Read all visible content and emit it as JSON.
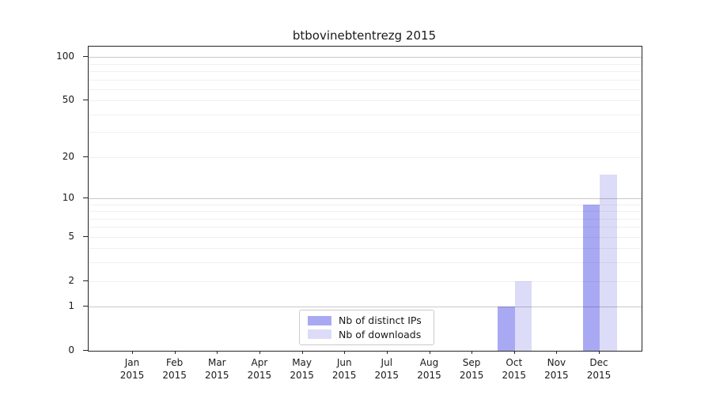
{
  "chart_data": {
    "type": "bar",
    "title": "btbovinebtentrezg 2015",
    "categories": [
      {
        "m": "Jan",
        "y": "2015"
      },
      {
        "m": "Feb",
        "y": "2015"
      },
      {
        "m": "Mar",
        "y": "2015"
      },
      {
        "m": "Apr",
        "y": "2015"
      },
      {
        "m": "May",
        "y": "2015"
      },
      {
        "m": "Jun",
        "y": "2015"
      },
      {
        "m": "Jul",
        "y": "2015"
      },
      {
        "m": "Aug",
        "y": "2015"
      },
      {
        "m": "Sep",
        "y": "2015"
      },
      {
        "m": "Oct",
        "y": "2015"
      },
      {
        "m": "Nov",
        "y": "2015"
      },
      {
        "m": "Dec",
        "y": "2015"
      }
    ],
    "series": [
      {
        "name": "Nb of distinct IPs",
        "color": "#a9a9f3",
        "values": [
          0,
          0,
          0,
          0,
          0,
          0,
          0,
          0,
          0,
          1,
          0,
          9
        ]
      },
      {
        "name": "Nb of downloads",
        "color": "#dcdcf8",
        "values": [
          0,
          0,
          0,
          0,
          0,
          0,
          0,
          0,
          0,
          2,
          0,
          15
        ]
      }
    ],
    "y_axis": {
      "scale": "log1p",
      "ticks": [
        0,
        1,
        2,
        5,
        10,
        20,
        50,
        100
      ],
      "max": 118,
      "major_gridlines": [
        1,
        10,
        100
      ],
      "minor_gridlines": [
        2,
        3,
        4,
        5,
        6,
        7,
        8,
        9,
        20,
        30,
        40,
        50,
        60,
        70,
        80,
        90
      ]
    },
    "xlabel": "",
    "ylabel": "",
    "legend_position": "inside-bottom-center",
    "grid": "both"
  }
}
